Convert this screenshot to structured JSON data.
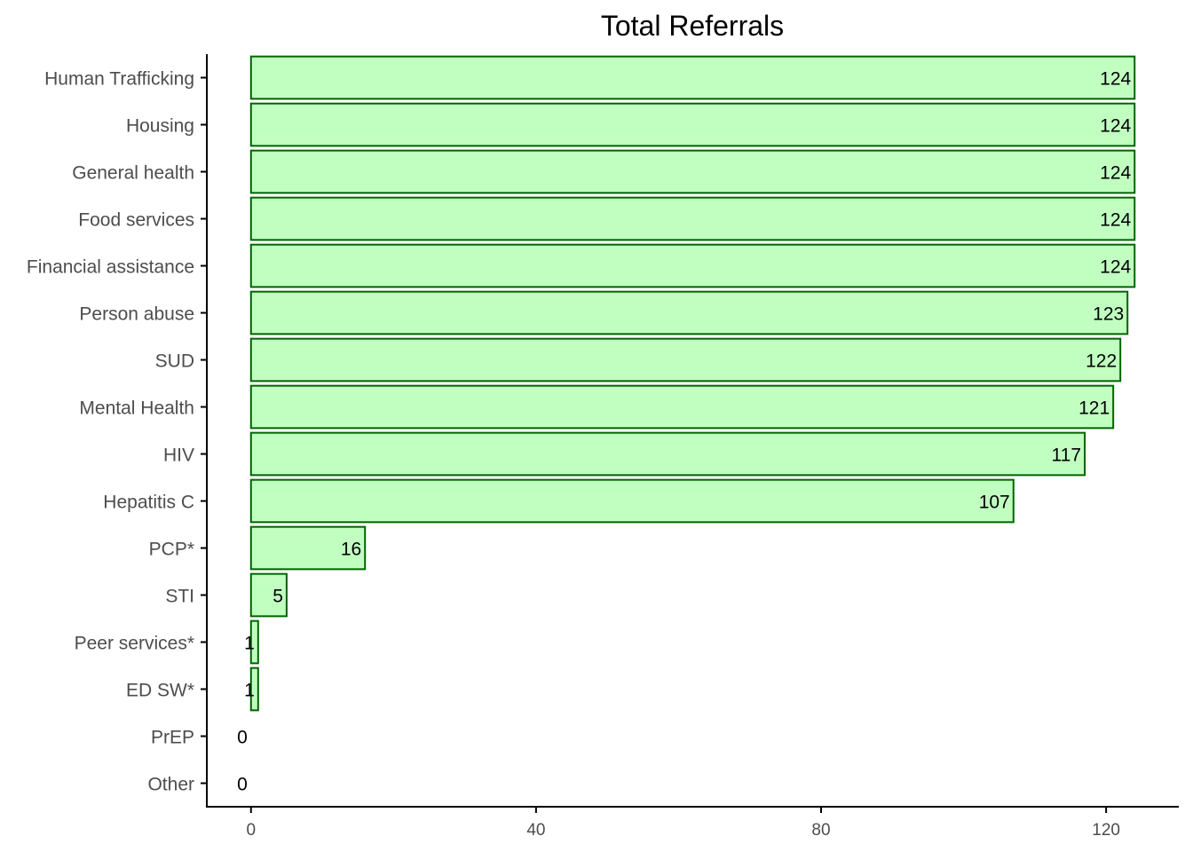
{
  "chart_data": {
    "type": "bar",
    "orientation": "horizontal",
    "title": "Total Referrals",
    "xlabel": "",
    "ylabel": "",
    "xlim": [
      -6.2,
      130.2
    ],
    "x_ticks": [
      0,
      40,
      80,
      120
    ],
    "grid": false,
    "legend": "none",
    "categories": [
      "Human Trafficking",
      "Housing",
      "General health",
      "Food services",
      "Financial assistance",
      "Person abuse",
      "SUD",
      "Mental Health",
      "HIV",
      "Hepatitis C",
      "PCP*",
      "STI",
      "Peer services*",
      "ED SW*",
      "PrEP",
      "Other"
    ],
    "values": [
      124,
      124,
      124,
      124,
      124,
      123,
      122,
      121,
      117,
      107,
      16,
      5,
      1,
      1,
      0,
      0
    ],
    "colors": {
      "bar_fill": "#c1ffc1",
      "bar_stroke": "#006400",
      "axis": "#000000",
      "tick_text": "#4d4d4d"
    }
  }
}
